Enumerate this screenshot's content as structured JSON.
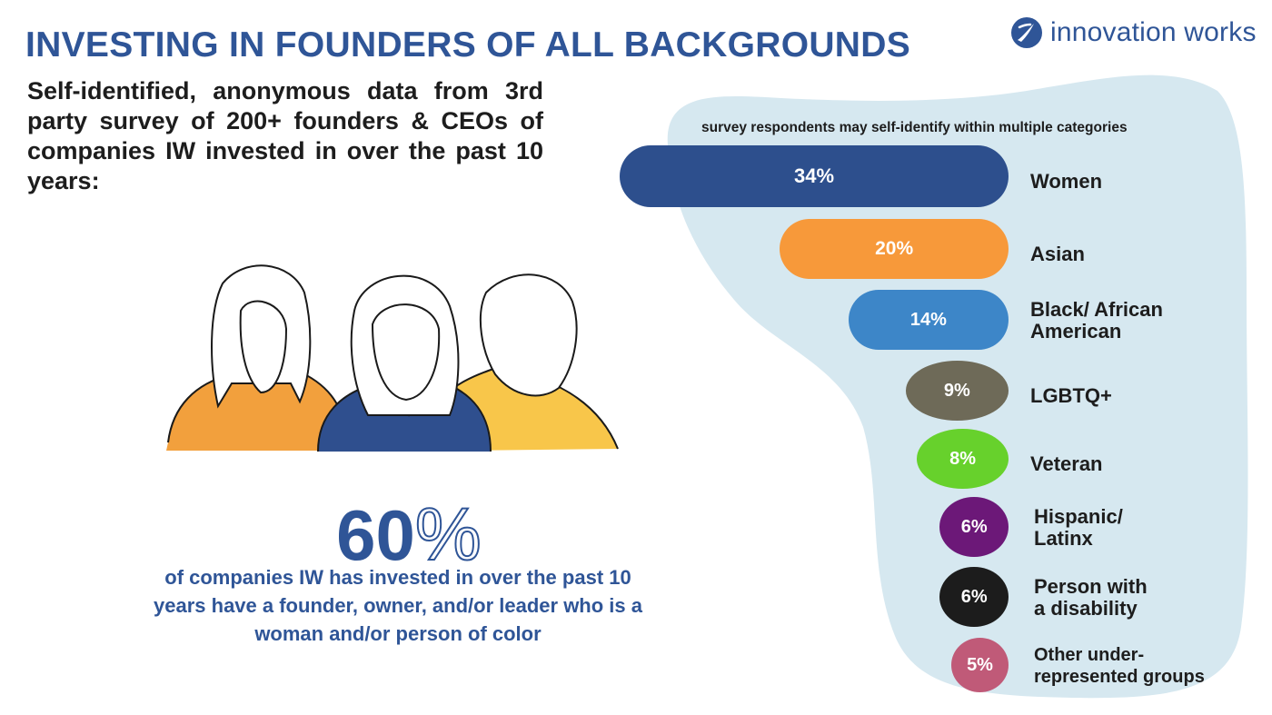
{
  "title": "INVESTING IN FOUNDERS OF ALL BACKGROUNDS",
  "logo": {
    "text": "innovation works",
    "icon": "iw-swoosh-icon"
  },
  "intro": "Self-identified, anonymous data from 3rd party survey of 200+ founders & CEOs of companies IW invested in over the past 10 years:",
  "illustration": {
    "icon": "three-founders-illustration",
    "colors": {
      "left": "#f2a03d",
      "center": "#2f4f8e",
      "right": "#f8c64a"
    }
  },
  "highlight": {
    "value": "60",
    "unit": "%",
    "caption_lines": [
      "of companies IW has invested in over the past 10",
      "years have a founder, owner, and/or leader who is a",
      "woman and/or person of color"
    ]
  },
  "chart_data": {
    "type": "bar",
    "orientation": "horizontal",
    "note": "survey respondents may self-identify within multiple categories",
    "categories": [
      "Women",
      "Asian",
      "Black/ African American",
      "LGBTQ+",
      "Veteran",
      "Hispanic/ Latinx",
      "Person with a disability",
      "Other under-represented groups"
    ],
    "category_lines": [
      [
        "Women"
      ],
      [
        "Asian"
      ],
      [
        "Black/ African",
        "American"
      ],
      [
        "LGBTQ+"
      ],
      [
        "Veteran"
      ],
      [
        "Hispanic/",
        "Latinx"
      ],
      [
        "Person with",
        "a disability"
      ],
      [
        "Other under-",
        "represented groups"
      ]
    ],
    "values": [
      34,
      20,
      14,
      9,
      8,
      6,
      6,
      5
    ],
    "value_labels": [
      "34%",
      "20%",
      "14%",
      "9%",
      "8%",
      "6%",
      "6%",
      "5%"
    ],
    "colors": [
      "#2d4f8d",
      "#f7993a",
      "#3d86c8",
      "#6e6a58",
      "#67d12c",
      "#6c1878",
      "#1c1c1c",
      "#c05a78"
    ],
    "background_color": "#d6e8f0",
    "unit": "%",
    "grid": false,
    "legend": "none"
  }
}
